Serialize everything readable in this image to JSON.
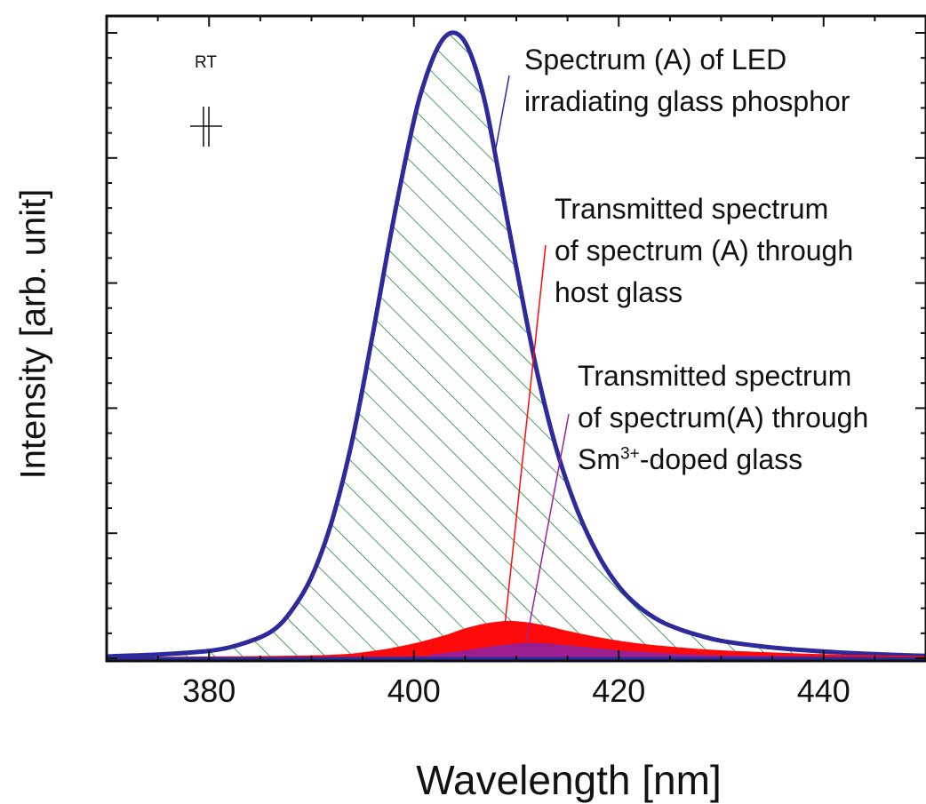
{
  "chart_data": {
    "type": "area",
    "title": "",
    "xlabel": "Wavelength [nm]",
    "ylabel": "Intensity [arb. unit]",
    "xlim": [
      370,
      450
    ],
    "ylim": [
      0,
      1.0
    ],
    "x_ticks": [
      380,
      400,
      420,
      440
    ],
    "x_tick_labels": [
      "380",
      "400",
      "420",
      "440"
    ],
    "grid": false,
    "legend": "none",
    "condition_label": "RT",
    "series": [
      {
        "name": "Spectrum (A) of LED irradiating glass phosphor",
        "color": "#2e2a9c",
        "fill": "hatched-green",
        "x": [
          370,
          375,
          380,
          383,
          386,
          388,
          390,
          392,
          394,
          396,
          398,
          400,
          401,
          402,
          403,
          404,
          405,
          406,
          407,
          408,
          410,
          412,
          414,
          416,
          418,
          420,
          422,
          424,
          426,
          428,
          430,
          434,
          438,
          442,
          446,
          450
        ],
        "y": [
          0.003,
          0.006,
          0.012,
          0.022,
          0.042,
          0.075,
          0.13,
          0.22,
          0.35,
          0.52,
          0.7,
          0.86,
          0.92,
          0.965,
          0.993,
          1.0,
          0.985,
          0.945,
          0.885,
          0.8,
          0.625,
          0.46,
          0.33,
          0.235,
          0.165,
          0.115,
          0.082,
          0.06,
          0.046,
          0.036,
          0.028,
          0.019,
          0.013,
          0.009,
          0.006,
          0.004
        ]
      },
      {
        "name": "Transmitted spectrum of spectrum (A) through host glass",
        "color": "#ff0a0a",
        "fill": "solid",
        "x": [
          370,
          390,
          396,
          400,
          403,
          405,
          407,
          409,
          411,
          413,
          415,
          418,
          421,
          425,
          430,
          436,
          442,
          450
        ],
        "y": [
          0.0,
          0.003,
          0.01,
          0.022,
          0.035,
          0.046,
          0.054,
          0.058,
          0.056,
          0.05,
          0.042,
          0.032,
          0.024,
          0.017,
          0.011,
          0.007,
          0.004,
          0.002
        ]
      },
      {
        "name": "Transmitted spectrum of spectrum(A) through Sm3+-doped glass",
        "color": "#9b1f8f",
        "fill": "solid",
        "x": [
          370,
          398,
          402,
          405,
          407,
          409,
          411,
          413,
          415,
          418,
          421,
          425,
          430,
          440,
          450
        ],
        "y": [
          0.0,
          0.001,
          0.005,
          0.011,
          0.016,
          0.02,
          0.023,
          0.022,
          0.019,
          0.014,
          0.01,
          0.006,
          0.003,
          0.001,
          0.0
        ]
      }
    ],
    "annotations": {
      "led": {
        "lines": [
          "Spectrum (A) of LED",
          "irradiating glass phosphor"
        ],
        "color": "#2e2a9c",
        "points_to_x": 408
      },
      "host": {
        "lines": [
          "Transmitted spectrum",
          "of spectrum (A) through",
          "host glass"
        ],
        "color": "#ff0a0a",
        "points_to_x": 409
      },
      "sm": {
        "lines": [
          "Transmitted spectrum",
          "of spectrum(A) through",
          "-doped glass"
        ],
        "ion": "Sm",
        "ion_charge": "3+",
        "color": "#a020a0",
        "points_to_x": 411
      }
    }
  }
}
